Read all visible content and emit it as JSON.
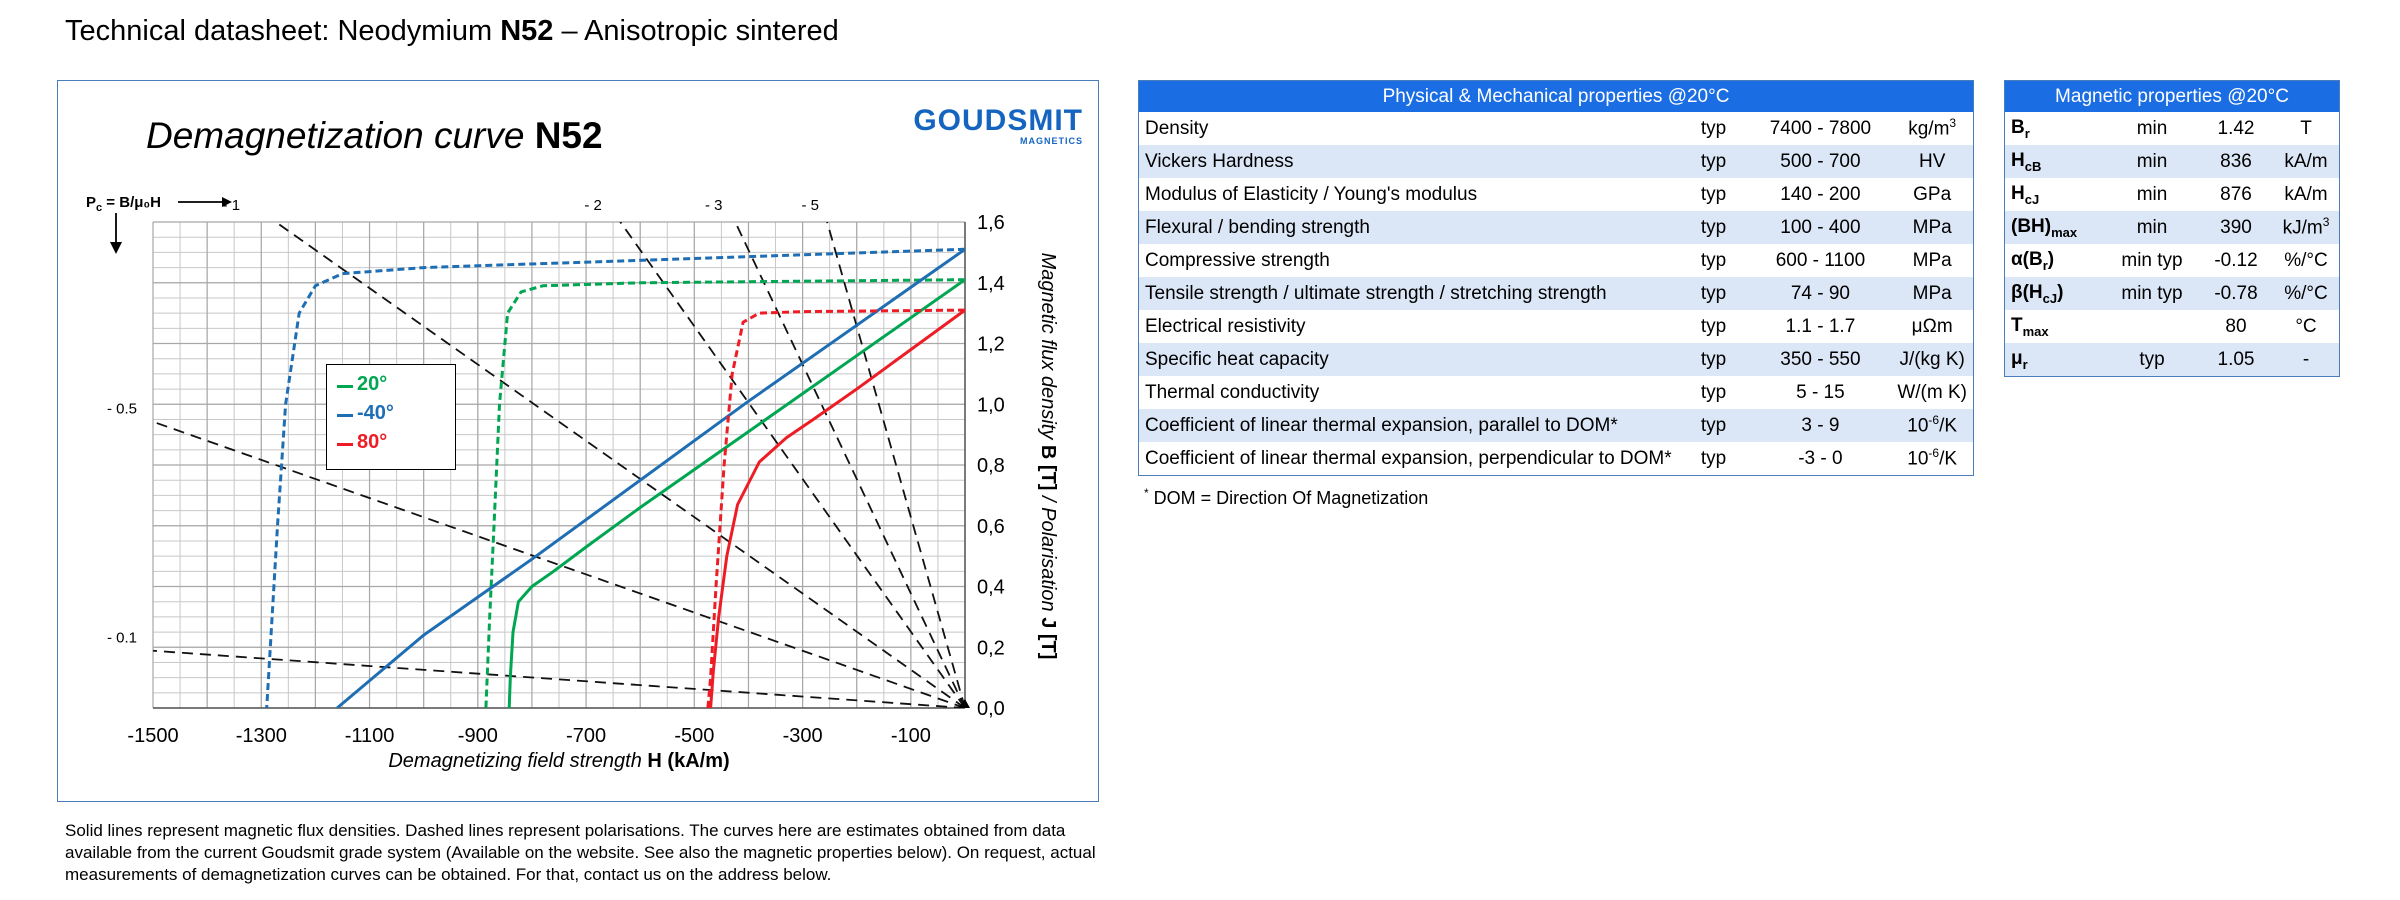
{
  "page": {
    "title_prefix": "Technical datasheet: Neodymium ",
    "title_grade": "N52",
    "title_suffix": " – Anisotropic sintered"
  },
  "chart": {
    "title_prefix": "Demagnetization curve ",
    "title_grade": "N52",
    "logo_main": "GOUDSMIT",
    "logo_sub": "MAGNETICS",
    "pc_label": "P",
    "pc_sub": "c",
    "pc_formula": " = B/μ₀H",
    "xlabel_prefix": "Demagnetizing field strength ",
    "xlabel_bold": "H (kA/m)",
    "ylabel_prefix": "Magnetic flux density ",
    "ylabel_bold1": "B [T]",
    "ylabel_mid": " / Polarisation ",
    "ylabel_bold2": "J [T]"
  },
  "chart_data": {
    "type": "line",
    "xlabel": "Demagnetizing field strength H (kA/m)",
    "ylabel": "Magnetic flux density B [T] / Polarisation J [T]",
    "xlim": [
      -1500,
      0
    ],
    "ylim": [
      0,
      1.6
    ],
    "x_ticks": [
      -1500,
      -1300,
      -1100,
      -900,
      -700,
      -500,
      -300,
      -100
    ],
    "x_tick_labels": [
      "-1500",
      "-1300",
      "-1100",
      "-900",
      "-700",
      "-500",
      "-300",
      "-100"
    ],
    "y_ticks": [
      0,
      0.2,
      0.4,
      0.6,
      0.8,
      1.0,
      1.2,
      1.4,
      1.6
    ],
    "y_tick_labels": [
      "0,0",
      "0,2",
      "0,4",
      "0,6",
      "0,8",
      "1,0",
      "1,2",
      "1,4",
      "1,6"
    ],
    "grid": true,
    "load_lines": [
      {
        "label": "- 0.1",
        "slope": -0.1
      },
      {
        "label": "- 0.5",
        "slope": -0.5
      },
      {
        "label": "- 1",
        "slope": -1
      },
      {
        "label": "- 2",
        "slope": -2
      },
      {
        "label": "- 3",
        "slope": -3
      },
      {
        "label": "- 5",
        "slope": -5
      }
    ],
    "series": [
      {
        "name": "20°",
        "color": "#00a651",
        "kind": "B",
        "style": "solid",
        "points": [
          [
            0,
            1.41
          ],
          [
            -200,
            1.16
          ],
          [
            -400,
            0.91
          ],
          [
            -600,
            0.66
          ],
          [
            -700,
            0.53
          ],
          [
            -760,
            0.45
          ],
          [
            -800,
            0.4
          ],
          [
            -825,
            0.35
          ],
          [
            -835,
            0.25
          ],
          [
            -840,
            0.1
          ],
          [
            -842,
            0
          ]
        ]
      },
      {
        "name": "20°",
        "color": "#00a651",
        "kind": "J",
        "style": "dashed",
        "points": [
          [
            0,
            1.41
          ],
          [
            -300,
            1.405
          ],
          [
            -600,
            1.4
          ],
          [
            -780,
            1.39
          ],
          [
            -820,
            1.37
          ],
          [
            -845,
            1.3
          ],
          [
            -860,
            1.0
          ],
          [
            -870,
            0.6
          ],
          [
            -878,
            0.3
          ],
          [
            -885,
            0
          ]
        ]
      },
      {
        "name": "-40°",
        "color": "#1f6eb4",
        "kind": "B",
        "style": "solid",
        "points": [
          [
            0,
            1.51
          ],
          [
            -400,
            1.01
          ],
          [
            -800,
            0.49
          ],
          [
            -1000,
            0.24
          ],
          [
            -1160,
            0
          ]
        ]
      },
      {
        "name": "-40°",
        "color": "#1f6eb4",
        "kind": "J",
        "style": "dashed",
        "points": [
          [
            0,
            1.51
          ],
          [
            -500,
            1.48
          ],
          [
            -1000,
            1.45
          ],
          [
            -1150,
            1.43
          ],
          [
            -1200,
            1.39
          ],
          [
            -1230,
            1.3
          ],
          [
            -1255,
            1.0
          ],
          [
            -1270,
            0.6
          ],
          [
            -1280,
            0.3
          ],
          [
            -1290,
            0
          ]
        ]
      },
      {
        "name": "80°",
        "color": "#ee1c25",
        "kind": "B",
        "style": "solid",
        "points": [
          [
            0,
            1.31
          ],
          [
            -200,
            1.05
          ],
          [
            -280,
            0.95
          ],
          [
            -330,
            0.89
          ],
          [
            -380,
            0.81
          ],
          [
            -420,
            0.67
          ],
          [
            -440,
            0.5
          ],
          [
            -455,
            0.3
          ],
          [
            -465,
            0.12
          ],
          [
            -470,
            0
          ]
        ]
      },
      {
        "name": "80°",
        "color": "#ee1c25",
        "kind": "J",
        "style": "dashed",
        "points": [
          [
            0,
            1.31
          ],
          [
            -300,
            1.305
          ],
          [
            -380,
            1.3
          ],
          [
            -410,
            1.27
          ],
          [
            -430,
            1.1
          ],
          [
            -445,
            0.8
          ],
          [
            -460,
            0.4
          ],
          [
            -470,
            0.1
          ],
          [
            -475,
            0
          ]
        ]
      }
    ],
    "legend": {
      "placement": "left-center",
      "entries": [
        "20°",
        "-40°",
        "80°"
      ],
      "colors": [
        "#00a651",
        "#1f6eb4",
        "#ee1c25"
      ]
    }
  },
  "physical": {
    "header": "Physical & Mechanical properties @20°C",
    "rows": [
      {
        "name": "Density",
        "q": "typ",
        "value": "7400 - 7800",
        "unit": "kg/m",
        "unit_sup": "3"
      },
      {
        "name": "Vickers Hardness",
        "q": "typ",
        "value": "500 - 700",
        "unit": "HV",
        "unit_sup": ""
      },
      {
        "name": "Modulus of Elasticity / Young's modulus",
        "q": "typ",
        "value": "140 - 200",
        "unit": "GPa",
        "unit_sup": ""
      },
      {
        "name": "Flexural / bending strength",
        "q": "typ",
        "value": "100 - 400",
        "unit": "MPa",
        "unit_sup": ""
      },
      {
        "name": "Compressive strength",
        "q": "typ",
        "value": "600 - 1100",
        "unit": "MPa",
        "unit_sup": ""
      },
      {
        "name": "Tensile strength / ultimate strength / stretching strength",
        "q": "typ",
        "value": "74 - 90",
        "unit": "MPa",
        "unit_sup": ""
      },
      {
        "name": "Electrical resistivity",
        "q": "typ",
        "value": "1.1 - 1.7",
        "unit": "μΩm",
        "unit_sup": ""
      },
      {
        "name": "Specific heat capacity",
        "q": "typ",
        "value": "350 - 550",
        "unit": "J/(kg K)",
        "unit_sup": ""
      },
      {
        "name": "Thermal conductivity",
        "q": "typ",
        "value": "5 - 15",
        "unit": "W/(m K)",
        "unit_sup": ""
      },
      {
        "name": "Coefficient of linear thermal expansion, parallel to DOM*",
        "q": "typ",
        "value": "3 - 9",
        "unit": "10",
        "unit_sup": "-6",
        "unit_after": "/K"
      },
      {
        "name": "Coefficient of linear thermal expansion, perpendicular to DOM*",
        "q": "typ",
        "value": "-3 - 0",
        "unit": "10",
        "unit_sup": "-6",
        "unit_after": "/K"
      }
    ],
    "footnote_star": "*",
    "footnote": " DOM = Direction Of Magnetization"
  },
  "magnetic": {
    "header": "Magnetic properties @20°C",
    "rows": [
      {
        "sym": "B",
        "sub": "r",
        "sup": "",
        "after": "",
        "q": "min",
        "value": "1.42",
        "unit": "T",
        "unit_sup": ""
      },
      {
        "sym": "H",
        "sub": "cB",
        "sup": "",
        "after": "",
        "q": "min",
        "value": "836",
        "unit": "kA/m",
        "unit_sup": ""
      },
      {
        "sym": "H",
        "sub": "cJ",
        "sup": "",
        "after": "",
        "q": "min",
        "value": "876",
        "unit": "kA/m",
        "unit_sup": ""
      },
      {
        "sym": "(BH)",
        "sub": "max",
        "sup": "",
        "after": "",
        "q": "min",
        "value": "390",
        "unit": "kJ/m",
        "unit_sup": "3"
      },
      {
        "sym": "α(B",
        "sub": "r",
        "sup": "",
        "after": ")",
        "q": "min typ",
        "value": "-0.12",
        "unit": "%/°C",
        "unit_sup": ""
      },
      {
        "sym": "β(H",
        "sub": "cJ",
        "sup": "",
        "after": ")",
        "q": "min typ",
        "value": "-0.78",
        "unit": "%/°C",
        "unit_sup": ""
      },
      {
        "sym": "T",
        "sub": "max",
        "sup": "",
        "after": "",
        "q": "",
        "value": "80",
        "unit": "°C",
        "unit_sup": ""
      },
      {
        "sym": "μ",
        "sub": "r",
        "sup": "",
        "after": "",
        "q": "typ",
        "value": "1.05",
        "unit": "-",
        "unit_sup": ""
      }
    ]
  },
  "note": "Solid lines represent magnetic flux densities. Dashed lines represent polarisations. The curves here are estimates obtained from data available from the current Goudsmit grade system (Available on the website. See also the magnetic properties below). On request, actual measurements of demagnetization curves can be obtained. For that, contact us on the address below."
}
